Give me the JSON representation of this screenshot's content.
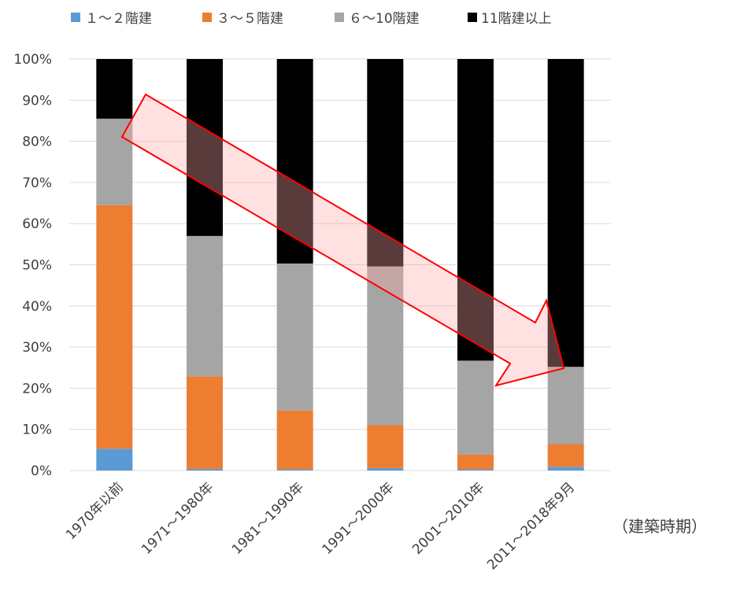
{
  "chart_data": {
    "type": "bar",
    "stacked": true,
    "percent": true,
    "categories": [
      "1970年以前",
      "1971～1980年",
      "1981～1990年",
      "1991～2000年",
      "2001～2010年",
      "2011～2018年9月"
    ],
    "series": [
      {
        "name": "１～２階建",
        "color": "#5B9BD5",
        "values": [
          5.3,
          0.4,
          0.3,
          0.6,
          0.3,
          0.9
        ]
      },
      {
        "name": "３～５階建",
        "color": "#ED7D31",
        "values": [
          59.2,
          22.5,
          14.3,
          10.4,
          3.6,
          5.5
        ]
      },
      {
        "name": "６～10階建",
        "color": "#A5A5A5",
        "values": [
          21.0,
          34.1,
          35.7,
          38.6,
          22.8,
          18.8
        ]
      },
      {
        "name": "11階建以上",
        "color": "#000000",
        "values": [
          14.5,
          43.0,
          49.7,
          50.4,
          73.3,
          74.8
        ]
      }
    ],
    "ylim": [
      0,
      100
    ],
    "yticks": [
      "0%",
      "10%",
      "20%",
      "30%",
      "40%",
      "50%",
      "60%",
      "70%",
      "80%",
      "90%",
      "100%"
    ],
    "xlabel": "（建築時期）",
    "legend_position": "top",
    "grid": true,
    "annotation": {
      "shape": "arrow",
      "direction": "down-right",
      "fill": "#FFE0E0",
      "stroke": "#FF0000"
    }
  }
}
